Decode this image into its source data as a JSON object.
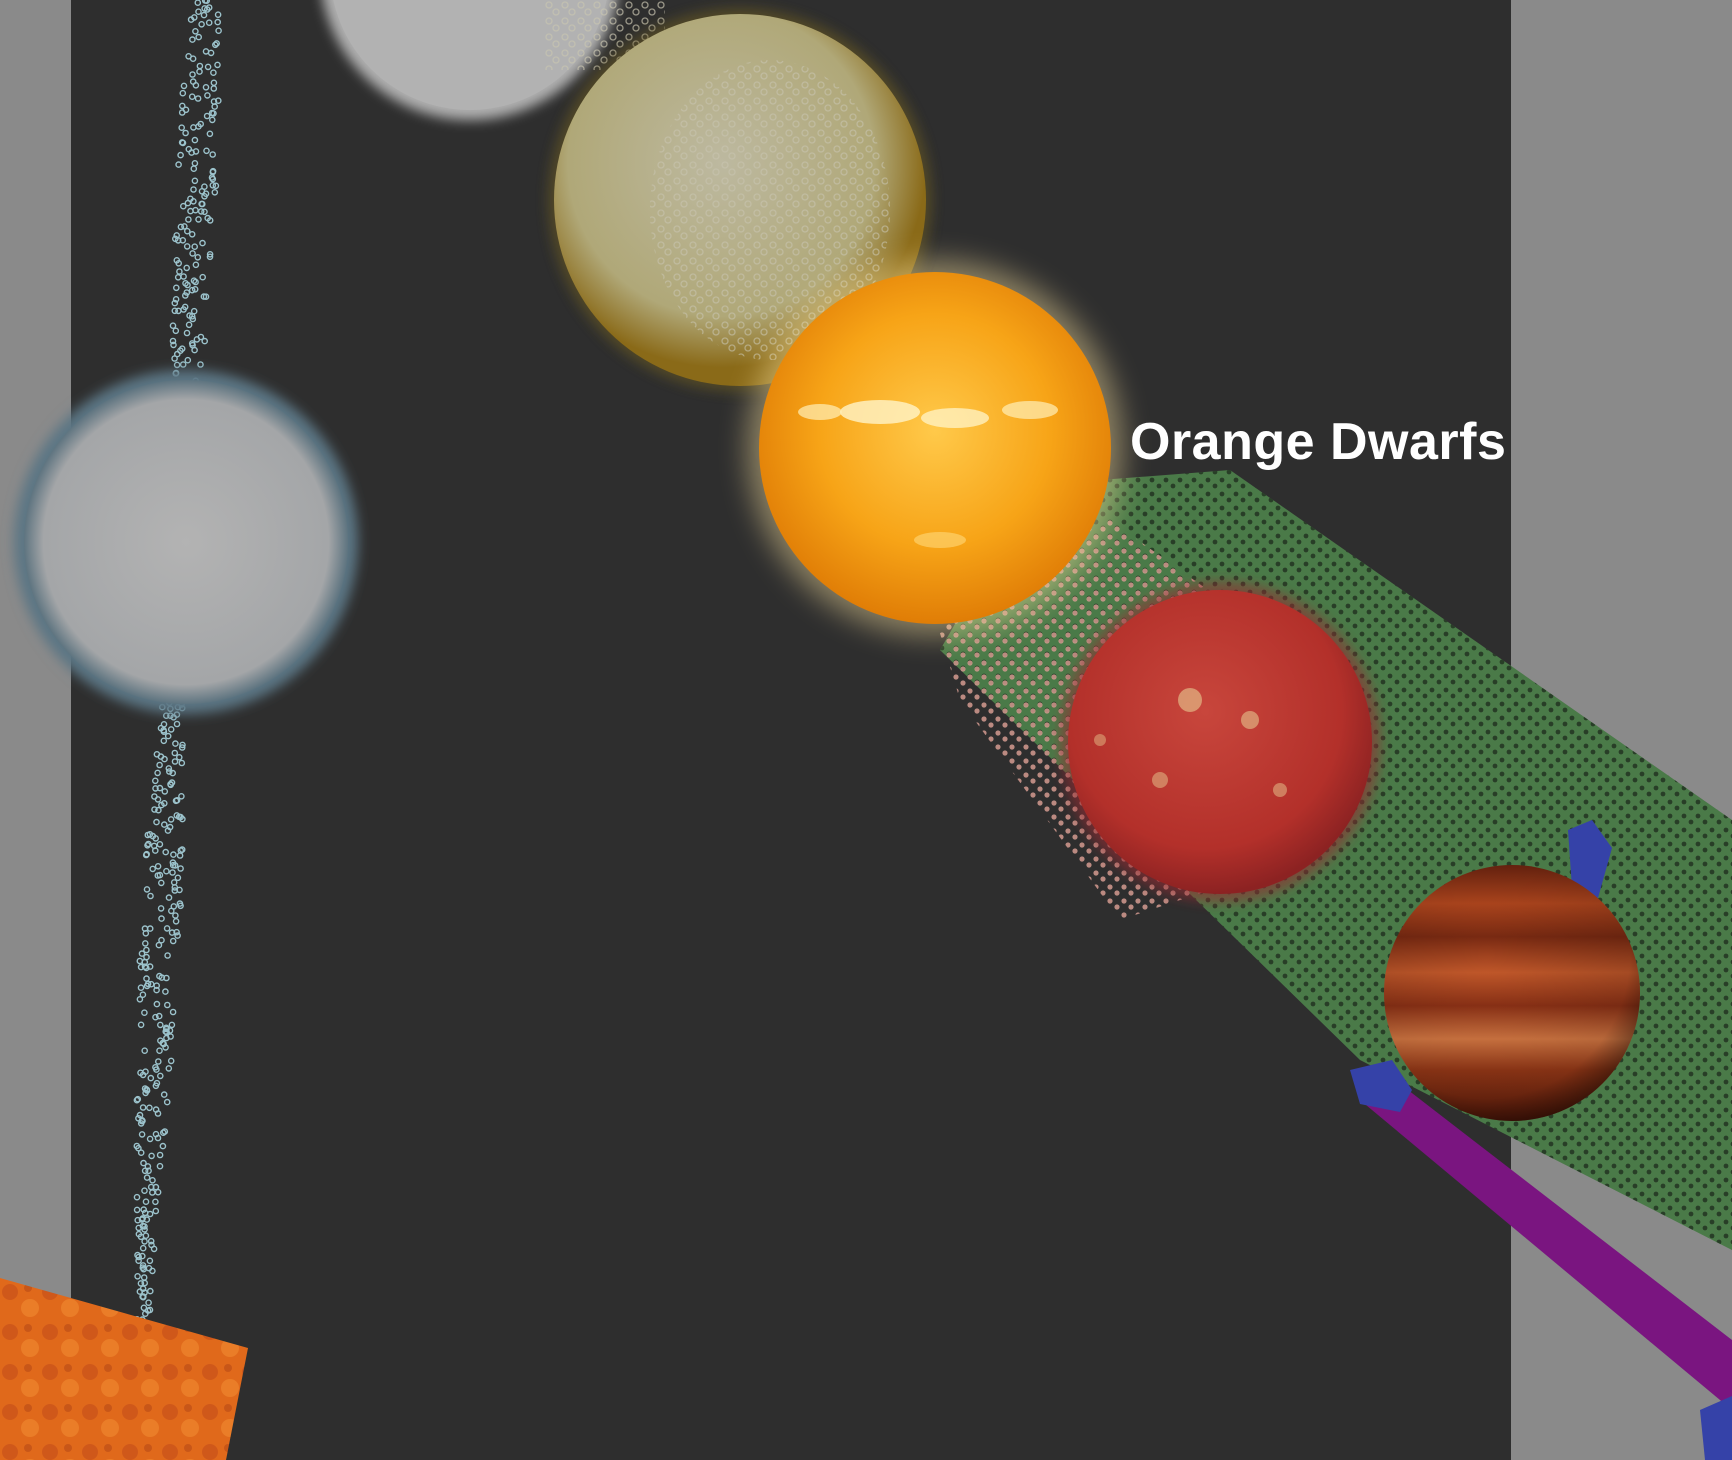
{
  "scene": {
    "label": "Orange Dwarfs",
    "colors": {
      "background_gray": "#8a8a8a",
      "panel_dark": "#2e2e2e",
      "label_text": "#ffffff",
      "white_dwarf": "#a9a9a9",
      "yellow_star": "#b4ac84",
      "orange_dwarf": "#f7a417",
      "red_dwarf": "#b8312b",
      "brown_dwarf": "#9a3612",
      "band_green": "#4a7a48",
      "band_purple": "#7a1580",
      "band_blue": "#3542a8",
      "volcanic_orange": "#e06a1c"
    },
    "objects": [
      "white-star",
      "white-dwarf",
      "yellow-star",
      "orange-dwarf",
      "red-dwarf",
      "brown-dwarf",
      "particle-stream",
      "green-band",
      "purple-band",
      "blue-markers",
      "volcanic-texture"
    ]
  }
}
